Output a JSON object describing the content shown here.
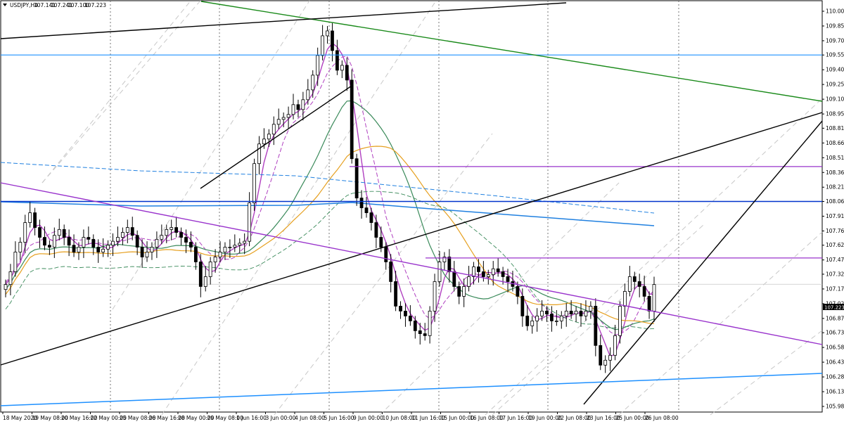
{
  "header": {
    "symbol": "USDJPY,H4",
    "open": "107.141",
    "high": "107.241",
    "low": "107.100",
    "close": "107.223"
  },
  "chart_data": {
    "type": "candlestick",
    "ylim": [
      105.98,
      110.05
    ],
    "y_ticks": [
      "110.000",
      "109.850",
      "109.700",
      "109.555",
      "109.405",
      "109.255",
      "109.105",
      "108.955",
      "108.810",
      "108.660",
      "108.510",
      "108.360",
      "108.210",
      "108.065",
      "107.915",
      "107.765",
      "107.620",
      "107.470",
      "107.325",
      "107.175",
      "107.025",
      "106.875",
      "106.730",
      "106.580",
      "106.430",
      "106.280",
      "106.130",
      "105.980"
    ],
    "x_ticks": [
      "18 May 2020",
      "19 May 08:00",
      "20 May 16:00",
      "22 May 00:00",
      "25 May 08:00",
      "26 May 16:00",
      "28 May 00:00",
      "29 May 08:00",
      "1 Jun 16:00",
      "3 Jun 00:00",
      "4 Jun 08:00",
      "5 Jun 16:00",
      "9 Jun 00:00",
      "10 Jun 08:00",
      "11 Jun 16:00",
      "15 Jun 00:00",
      "16 Jun 08:00",
      "17 Jun 16:00",
      "19 Jun 00:00",
      "22 Jun 08:00",
      "23 Jun 16:00",
      "25 Jun 00:00",
      "26 Jun 08:00"
    ],
    "current_price": "107.223",
    "colors": {
      "channel": "#000000",
      "resistance_green": "#1a8a1a",
      "purple": "#9933cc",
      "blue_level": "#0033cc",
      "light_blue": "#1e90ff",
      "ma_orange": "#e6a020",
      "ma_green": "#3a8a5a",
      "ma_violet": "#b040c0",
      "ma_blue": "#2080e0",
      "grid": "#c8c8c8"
    },
    "horizontal_levels": [
      {
        "price": 109.555,
        "color": "light_blue"
      },
      {
        "price": 108.065,
        "color": "blue_level"
      },
      {
        "price": 108.42,
        "color": "purple"
      },
      {
        "price": 107.49,
        "color": "purple"
      }
    ],
    "closes": [
      107.22,
      107.35,
      107.55,
      107.65,
      107.85,
      107.95,
      107.8,
      107.7,
      107.62,
      107.6,
      107.72,
      107.78,
      107.7,
      107.62,
      107.55,
      107.6,
      107.7,
      107.68,
      107.6,
      107.55,
      107.58,
      107.62,
      107.66,
      107.7,
      107.75,
      107.8,
      107.72,
      107.6,
      107.5,
      107.55,
      107.6,
      107.68,
      107.72,
      107.78,
      107.8,
      107.75,
      107.7,
      107.65,
      107.6,
      107.45,
      107.2,
      107.3,
      107.45,
      107.5,
      107.55,
      107.6,
      107.6,
      107.62,
      107.64,
      107.66,
      108.05,
      108.45,
      108.65,
      108.7,
      108.75,
      108.85,
      108.9,
      108.92,
      108.95,
      109.05,
      109.0,
      109.1,
      109.2,
      109.35,
      109.55,
      109.75,
      109.8,
      109.6,
      109.4,
      109.45,
      109.3,
      108.5,
      108.1,
      108.0,
      107.95,
      107.85,
      107.7,
      107.6,
      107.45,
      107.25,
      107.0,
      106.95,
      106.9,
      106.85,
      106.75,
      106.72,
      106.7,
      106.95,
      107.25,
      107.45,
      107.5,
      107.35,
      107.2,
      107.1,
      107.2,
      107.3,
      107.4,
      107.35,
      107.3,
      107.32,
      107.38,
      107.35,
      107.3,
      107.25,
      107.2,
      107.1,
      106.9,
      106.8,
      106.85,
      106.9,
      106.95,
      106.92,
      106.85,
      106.85,
      106.9,
      106.95,
      106.92,
      106.95,
      106.9,
      106.95,
      107.0,
      106.6,
      106.4,
      106.45,
      106.5,
      106.7,
      107.0,
      107.15,
      107.3,
      107.25,
      107.2,
      107.1,
      106.95,
      107.22
    ]
  }
}
